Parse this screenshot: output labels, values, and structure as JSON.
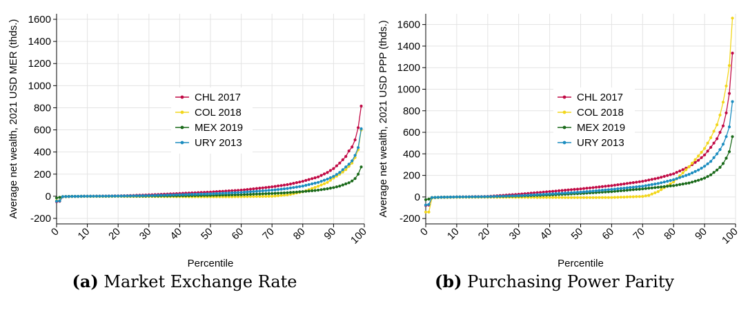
{
  "chart_data": [
    {
      "id": "a",
      "type": "line",
      "caption_tag": "(a)",
      "caption": "Market Exchange Rate",
      "xlabel": "Percentile",
      "ylabel": "Average net wealth, 2021 USD MER (thds.)",
      "xlim": [
        0,
        100
      ],
      "ylim": [
        -250,
        1650
      ],
      "xticks": [
        0,
        10,
        20,
        30,
        40,
        50,
        60,
        70,
        80,
        90,
        100
      ],
      "yticks": [
        -200,
        0,
        200,
        400,
        600,
        800,
        1000,
        1200,
        1400,
        1600
      ],
      "grid": true,
      "legend_position": "center",
      "series": [
        {
          "name": "CHL 2017",
          "color": "#c10a45",
          "knots": [
            [
              0,
              -50
            ],
            [
              1,
              -45
            ],
            [
              2,
              -5
            ],
            [
              5,
              -2
            ],
            [
              10,
              0
            ],
            [
              20,
              3
            ],
            [
              30,
              12
            ],
            [
              40,
              25
            ],
            [
              50,
              38
            ],
            [
              60,
              55
            ],
            [
              70,
              85
            ],
            [
              75,
              105
            ],
            [
              80,
              135
            ],
            [
              85,
              175
            ],
            [
              88,
              215
            ],
            [
              90,
              250
            ],
            [
              92,
              300
            ],
            [
              94,
              360
            ],
            [
              95,
              410
            ],
            [
              96,
              445
            ],
            [
              97,
              510
            ],
            [
              98,
              620
            ],
            [
              99,
              815
            ]
          ]
        },
        {
          "name": "COL 2018",
          "color": "#f2d61a",
          "knots": [
            [
              0,
              -40
            ],
            [
              1,
              -40
            ],
            [
              2,
              -5
            ],
            [
              5,
              -3
            ],
            [
              10,
              -2
            ],
            [
              20,
              -1
            ],
            [
              30,
              -2
            ],
            [
              40,
              -4
            ],
            [
              50,
              -5
            ],
            [
              60,
              -4
            ],
            [
              70,
              0
            ],
            [
              75,
              12
            ],
            [
              80,
              40
            ],
            [
              85,
              90
            ],
            [
              88,
              125
            ],
            [
              90,
              165
            ],
            [
              92,
              200
            ],
            [
              94,
              240
            ],
            [
              95,
              270
            ],
            [
              96,
              300
            ],
            [
              97,
              350
            ],
            [
              98,
              420
            ],
            [
              99,
              600
            ]
          ]
        },
        {
          "name": "MEX 2019",
          "color": "#1a6a1a",
          "knots": [
            [
              0,
              -15
            ],
            [
              1,
              -10
            ],
            [
              2,
              -3
            ],
            [
              5,
              -1
            ],
            [
              10,
              0
            ],
            [
              20,
              1
            ],
            [
              30,
              2
            ],
            [
              40,
              4
            ],
            [
              50,
              8
            ],
            [
              60,
              14
            ],
            [
              70,
              25
            ],
            [
              75,
              32
            ],
            [
              80,
              42
            ],
            [
              85,
              55
            ],
            [
              88,
              68
            ],
            [
              90,
              78
            ],
            [
              92,
              92
            ],
            [
              94,
              112
            ],
            [
              95,
              122
            ],
            [
              96,
              138
            ],
            [
              97,
              160
            ],
            [
              98,
              200
            ],
            [
              99,
              265
            ]
          ]
        },
        {
          "name": "URY 2013",
          "color": "#1a8cbf",
          "knots": [
            [
              0,
              -45
            ],
            [
              1,
              -42
            ],
            [
              2,
              -4
            ],
            [
              5,
              -2
            ],
            [
              10,
              0
            ],
            [
              20,
              2
            ],
            [
              30,
              6
            ],
            [
              40,
              14
            ],
            [
              50,
              22
            ],
            [
              60,
              35
            ],
            [
              70,
              55
            ],
            [
              75,
              70
            ],
            [
              80,
              92
            ],
            [
              85,
              125
            ],
            [
              88,
              155
            ],
            [
              90,
              180
            ],
            [
              92,
              215
            ],
            [
              94,
              265
            ],
            [
              95,
              290
            ],
            [
              96,
              320
            ],
            [
              97,
              370
            ],
            [
              98,
              440
            ],
            [
              99,
              610
            ]
          ]
        }
      ]
    },
    {
      "id": "b",
      "type": "line",
      "caption_tag": "(b)",
      "caption": "Purchasing Power Parity",
      "xlabel": "Percentile",
      "ylabel": "Average net wealth, 2021 USD PPP (thds.)",
      "xlim": [
        0,
        100
      ],
      "ylim": [
        -250,
        1700
      ],
      "xticks": [
        0,
        10,
        20,
        30,
        40,
        50,
        60,
        70,
        80,
        90,
        100
      ],
      "yticks": [
        -200,
        0,
        200,
        400,
        600,
        800,
        1000,
        1200,
        1400,
        1600
      ],
      "grid": true,
      "legend_position": "center",
      "series": [
        {
          "name": "CHL 2017",
          "color": "#c10a45",
          "knots": [
            [
              0,
              -80
            ],
            [
              1,
              -75
            ],
            [
              2,
              -8
            ],
            [
              5,
              -3
            ],
            [
              10,
              0
            ],
            [
              20,
              5
            ],
            [
              30,
              25
            ],
            [
              40,
              50
            ],
            [
              50,
              75
            ],
            [
              60,
              105
            ],
            [
              70,
              145
            ],
            [
              75,
              175
            ],
            [
              80,
              215
            ],
            [
              85,
              280
            ],
            [
              88,
              340
            ],
            [
              90,
              390
            ],
            [
              92,
              460
            ],
            [
              94,
              540
            ],
            [
              95,
              600
            ],
            [
              96,
              660
            ],
            [
              97,
              780
            ],
            [
              98,
              960
            ],
            [
              99,
              1335
            ]
          ]
        },
        {
          "name": "COL 2018",
          "color": "#f2d61a",
          "knots": [
            [
              0,
              -140
            ],
            [
              1,
              -140
            ],
            [
              2,
              -10
            ],
            [
              5,
              -5
            ],
            [
              10,
              -3
            ],
            [
              20,
              -2
            ],
            [
              30,
              -3
            ],
            [
              40,
              -5
            ],
            [
              50,
              -6
            ],
            [
              60,
              -5
            ],
            [
              70,
              5
            ],
            [
              72,
              15
            ],
            [
              75,
              50
            ],
            [
              80,
              140
            ],
            [
              85,
              280
            ],
            [
              88,
              380
            ],
            [
              90,
              450
            ],
            [
              92,
              550
            ],
            [
              94,
              670
            ],
            [
              95,
              760
            ],
            [
              96,
              880
            ],
            [
              97,
              1030
            ],
            [
              98,
              1220
            ],
            [
              99,
              1660
            ]
          ]
        },
        {
          "name": "MEX 2019",
          "color": "#1a6a1a",
          "knots": [
            [
              0,
              -25
            ],
            [
              1,
              -20
            ],
            [
              2,
              -5
            ],
            [
              5,
              -2
            ],
            [
              10,
              0
            ],
            [
              20,
              2
            ],
            [
              30,
              8
            ],
            [
              40,
              18
            ],
            [
              50,
              32
            ],
            [
              60,
              50
            ],
            [
              70,
              75
            ],
            [
              75,
              90
            ],
            [
              80,
              105
            ],
            [
              85,
              130
            ],
            [
              88,
              155
            ],
            [
              90,
              175
            ],
            [
              92,
              205
            ],
            [
              94,
              250
            ],
            [
              95,
              275
            ],
            [
              96,
              310
            ],
            [
              97,
              360
            ],
            [
              98,
              420
            ],
            [
              99,
              560
            ]
          ]
        },
        {
          "name": "URY 2013",
          "color": "#1a8cbf",
          "knots": [
            [
              0,
              -75
            ],
            [
              1,
              -70
            ],
            [
              2,
              -6
            ],
            [
              5,
              -3
            ],
            [
              10,
              0
            ],
            [
              20,
              3
            ],
            [
              30,
              12
            ],
            [
              40,
              28
            ],
            [
              50,
              45
            ],
            [
              60,
              70
            ],
            [
              70,
              100
            ],
            [
              75,
              125
            ],
            [
              80,
              160
            ],
            [
              85,
              210
            ],
            [
              88,
              250
            ],
            [
              90,
              285
            ],
            [
              92,
              330
            ],
            [
              94,
              400
            ],
            [
              95,
              440
            ],
            [
              96,
              490
            ],
            [
              97,
              560
            ],
            [
              98,
              650
            ],
            [
              99,
              885
            ]
          ]
        }
      ]
    }
  ]
}
